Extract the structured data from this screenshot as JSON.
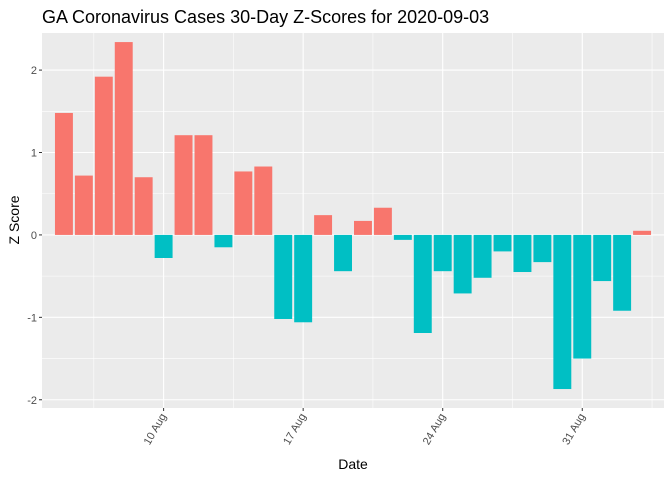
{
  "chart_data": {
    "type": "bar",
    "title": "GA Coronavirus Cases 30-Day Z-Scores for 2020-09-03",
    "xlabel": "Date",
    "ylabel": "Z Score",
    "ylim": [
      -2.1,
      2.45
    ],
    "y_ticks": [
      -2,
      -1,
      0,
      1,
      2
    ],
    "x_tick_labels": [
      {
        "label": "10 Aug",
        "date": "2020-08-10"
      },
      {
        "label": "17 Aug",
        "date": "2020-08-17"
      },
      {
        "label": "24 Aug",
        "date": "2020-08-24"
      },
      {
        "label": "31 Aug",
        "date": "2020-08-31"
      }
    ],
    "grid": true,
    "legend": "none",
    "colors": {
      "positive": "#F8766D",
      "negative": "#00BFC4",
      "panel": "#EBEBEB",
      "grid": "#FFFFFF"
    },
    "bars": [
      {
        "date": "2020-08-05",
        "value": 1.48
      },
      {
        "date": "2020-08-06",
        "value": 0.72
      },
      {
        "date": "2020-08-07",
        "value": 1.92
      },
      {
        "date": "2020-08-08",
        "value": 2.34
      },
      {
        "date": "2020-08-09",
        "value": 0.7
      },
      {
        "date": "2020-08-10",
        "value": -0.28
      },
      {
        "date": "2020-08-11",
        "value": 1.21
      },
      {
        "date": "2020-08-12",
        "value": 1.21
      },
      {
        "date": "2020-08-13",
        "value": -0.15
      },
      {
        "date": "2020-08-14",
        "value": 0.77
      },
      {
        "date": "2020-08-15",
        "value": 0.83
      },
      {
        "date": "2020-08-16",
        "value": -1.02
      },
      {
        "date": "2020-08-17",
        "value": -1.06
      },
      {
        "date": "2020-08-18",
        "value": 0.24
      },
      {
        "date": "2020-08-19",
        "value": -0.44
      },
      {
        "date": "2020-08-20",
        "value": 0.17
      },
      {
        "date": "2020-08-21",
        "value": 0.33
      },
      {
        "date": "2020-08-22",
        "value": -0.06
      },
      {
        "date": "2020-08-23",
        "value": -1.19
      },
      {
        "date": "2020-08-24",
        "value": -0.44
      },
      {
        "date": "2020-08-25",
        "value": -0.71
      },
      {
        "date": "2020-08-26",
        "value": -0.52
      },
      {
        "date": "2020-08-27",
        "value": -0.2
      },
      {
        "date": "2020-08-28",
        "value": -0.45
      },
      {
        "date": "2020-08-29",
        "value": -0.33
      },
      {
        "date": "2020-08-30",
        "value": -1.87
      },
      {
        "date": "2020-08-31",
        "value": -1.5
      },
      {
        "date": "2020-09-01",
        "value": -0.56
      },
      {
        "date": "2020-09-02",
        "value": -0.92
      },
      {
        "date": "2020-09-03",
        "value": 0.05
      }
    ]
  }
}
